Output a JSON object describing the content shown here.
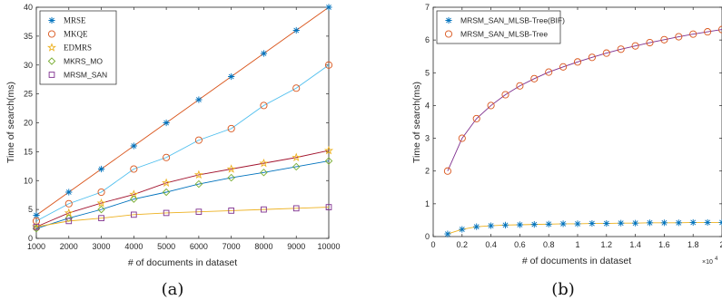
{
  "chart_data": [
    {
      "type": "line",
      "panel_label": "(a)",
      "xlabel": "# of documents in dataset",
      "ylabel": "Time of search(ms)",
      "x": [
        1000,
        2000,
        3000,
        4000,
        5000,
        6000,
        7000,
        8000,
        9000,
        10000
      ],
      "xlim": [
        1000,
        10000
      ],
      "ylim": [
        0,
        40
      ],
      "xticks": [
        "1000",
        "2000",
        "3000",
        "4000",
        "5000",
        "6000",
        "7000",
        "8000",
        "9000",
        "10000"
      ],
      "yticks": [
        "0",
        "5",
        "10",
        "15",
        "20",
        "25",
        "30",
        "35",
        "40"
      ],
      "legend_position": "top-left",
      "series": [
        {
          "name": "MRSE",
          "marker": "asterisk",
          "color": "#0072bd",
          "line_color": "#d95319",
          "serif": true,
          "values": [
            4,
            8,
            12,
            16,
            20,
            24,
            28,
            32,
            36,
            40
          ]
        },
        {
          "name": "MKQE",
          "marker": "circle",
          "color": "#d95319",
          "line_color": "#4dbeee",
          "serif": true,
          "values": [
            3,
            6,
            8,
            12,
            14,
            17,
            19,
            23,
            26,
            30
          ]
        },
        {
          "name": "EDMRS",
          "marker": "star",
          "color": "#edb120",
          "line_color": "#a2142f",
          "serif": true,
          "values": [
            2,
            4.4,
            6.1,
            7.6,
            9.6,
            11,
            12,
            13,
            14,
            15.2
          ]
        },
        {
          "name": "MKRS_MO",
          "marker": "diamond",
          "color": "#77ac30",
          "line_color": "#0072bd",
          "serif": false,
          "values": [
            1.7,
            3.5,
            5,
            6.8,
            8,
            9.4,
            10.5,
            11.4,
            12.4,
            13.4
          ]
        },
        {
          "name": "MRSM_SAN",
          "marker": "square",
          "color": "#7e2f8e",
          "line_color": "#edb120",
          "serif": false,
          "values": [
            2,
            3,
            3.5,
            4.1,
            4.4,
            4.6,
            4.8,
            5,
            5.2,
            5.4
          ]
        }
      ]
    },
    {
      "type": "line",
      "panel_label": "(b)",
      "xlabel": "# of documents in dataset",
      "ylabel": "Time of search(ms)",
      "x_scale_label": "×10",
      "x_scale_exponent": "4",
      "x": [
        0.1,
        0.2,
        0.3,
        0.4,
        0.5,
        0.6,
        0.7,
        0.8,
        0.9,
        1.0,
        1.1,
        1.2,
        1.3,
        1.4,
        1.5,
        1.6,
        1.7,
        1.8,
        1.9,
        2.0
      ],
      "xlim": [
        0,
        2
      ],
      "ylim": [
        0,
        7
      ],
      "xticks": [
        "0",
        "0.2",
        "0.4",
        "0.6",
        "0.8",
        "1",
        "1.2",
        "1.4",
        "1.6",
        "1.8",
        "2"
      ],
      "yticks": [
        "0",
        "1",
        "2",
        "3",
        "4",
        "5",
        "6",
        "7"
      ],
      "legend_position": "top-left",
      "series": [
        {
          "name": "MRSM_SAN_MLSB-Tree(BIF)",
          "marker": "asterisk",
          "color": "#0072bd",
          "line_color": "#edb120",
          "values": [
            0.08,
            0.22,
            0.3,
            0.33,
            0.35,
            0.36,
            0.37,
            0.38,
            0.39,
            0.39,
            0.4,
            0.4,
            0.41,
            0.41,
            0.42,
            0.42,
            0.42,
            0.43,
            0.43,
            0.43
          ]
        },
        {
          "name": "MRSM_SAN_MLSB-Tree",
          "marker": "circle",
          "color": "#d95319",
          "line_color": "#7e2f8e",
          "values": [
            2.0,
            3.0,
            3.6,
            4.0,
            4.33,
            4.6,
            4.82,
            5.02,
            5.18,
            5.33,
            5.47,
            5.6,
            5.72,
            5.82,
            5.92,
            6.01,
            6.1,
            6.18,
            6.25,
            6.32
          ]
        }
      ]
    }
  ]
}
